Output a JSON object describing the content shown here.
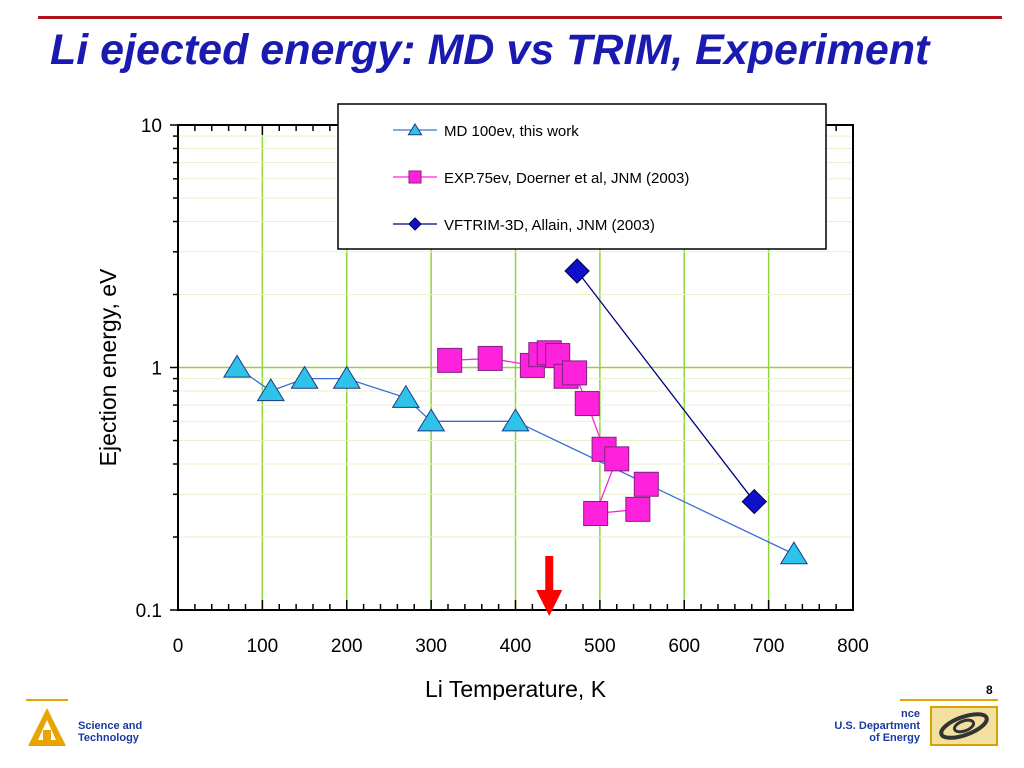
{
  "slide": {
    "title": "Li ejected energy: MD vs TRIM, Experiment",
    "page_number": "8",
    "footer_left": [
      "Science and",
      "Technology"
    ],
    "footer_right": [
      "nce",
      "U.S. Department",
      "of Energy"
    ]
  },
  "colors": {
    "title": "#1a1ab0",
    "rule": "#b0121c",
    "footer_accent": "#e8a400",
    "md_series": "#2fc3ea",
    "md_line": "#3a6fd8",
    "exp_series": "#ff22dd",
    "trim_series": "#1010cc",
    "arrow": "#ff0000",
    "grid": "#8fd43a"
  },
  "chart_data": {
    "type": "scatter",
    "xlabel": "Li Temperature, K",
    "ylabel": "Ejection energy, eV",
    "xlim": [
      0,
      800
    ],
    "ylim": [
      0.1,
      10
    ],
    "yscale": "log",
    "x_ticks": [
      "0",
      "100",
      "200",
      "300",
      "400",
      "500",
      "600",
      "700",
      "800"
    ],
    "y_ticks": [
      "0.1",
      "1",
      "10"
    ],
    "grid": true,
    "legend_position": "top-right",
    "series": [
      {
        "name": "MD 100ev, this work",
        "marker": "triangle",
        "x": [
          70,
          110,
          150,
          200,
          270,
          300,
          400,
          730
        ],
        "y": [
          1.0,
          0.8,
          0.9,
          0.9,
          0.75,
          0.6,
          0.6,
          0.17
        ]
      },
      {
        "name": "EXP.75ev, Doerner et al, JNM (2003)",
        "marker": "square",
        "x": [
          322,
          370,
          420,
          430,
          440,
          450,
          460,
          470,
          485,
          505,
          520,
          495,
          545,
          555
        ],
        "y": [
          1.07,
          1.09,
          1.02,
          1.13,
          1.15,
          1.12,
          0.92,
          0.95,
          0.71,
          0.46,
          0.42,
          0.25,
          0.26,
          0.33
        ]
      },
      {
        "name": "VFTRIM-3D, Allain, JNM (2003)",
        "marker": "diamond",
        "x": [
          473,
          683
        ],
        "y": [
          2.5,
          0.28
        ]
      }
    ],
    "annotations": [
      {
        "type": "arrow",
        "x": 440,
        "direction": "down",
        "color": "#ff0000"
      }
    ]
  }
}
